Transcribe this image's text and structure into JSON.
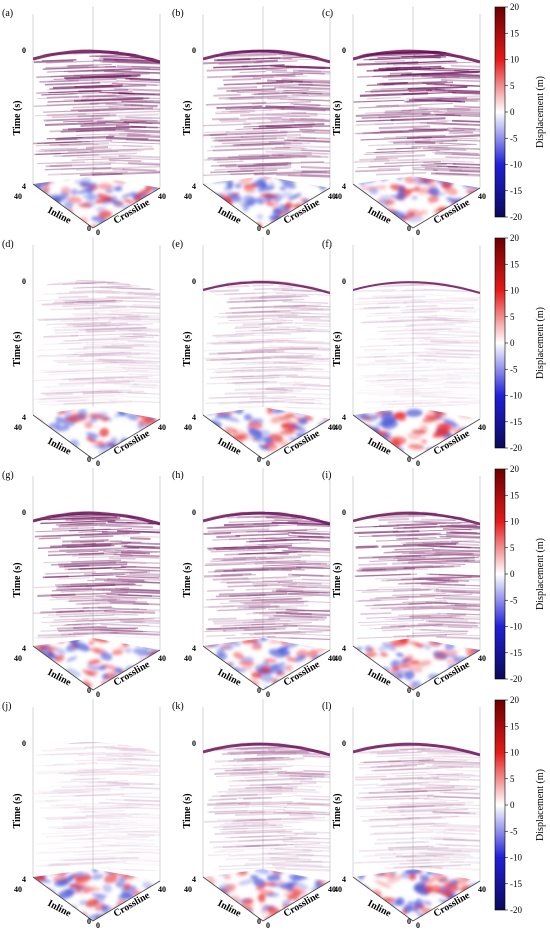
{
  "chart_data": {
    "type": "heatmap",
    "layout": {
      "rows": 4,
      "cols": 3
    },
    "panels": [
      {
        "label": "(a)",
        "row": 0,
        "col": 0,
        "amplitude": 1.0,
        "top_boundary": 1.0
      },
      {
        "label": "(b)",
        "row": 0,
        "col": 1,
        "amplitude": 0.95,
        "top_boundary": 0.9
      },
      {
        "label": "(c)",
        "row": 0,
        "col": 2,
        "amplitude": 1.0,
        "top_boundary": 1.0
      },
      {
        "label": "(d)",
        "row": 1,
        "col": 0,
        "amplitude": 0.45,
        "top_boundary": 0.1
      },
      {
        "label": "(e)",
        "row": 1,
        "col": 1,
        "amplitude": 0.5,
        "top_boundary": 0.5
      },
      {
        "label": "(f)",
        "row": 1,
        "col": 2,
        "amplitude": 0.3,
        "top_boundary": 0.3
      },
      {
        "label": "(g)",
        "row": 2,
        "col": 0,
        "amplitude": 0.95,
        "top_boundary": 1.0
      },
      {
        "label": "(h)",
        "row": 2,
        "col": 1,
        "amplitude": 0.9,
        "top_boundary": 0.9
      },
      {
        "label": "(i)",
        "row": 2,
        "col": 2,
        "amplitude": 0.85,
        "top_boundary": 0.8
      },
      {
        "label": "(j)",
        "row": 3,
        "col": 0,
        "amplitude": 0.3,
        "top_boundary": 0.1
      },
      {
        "label": "(k)",
        "row": 3,
        "col": 1,
        "amplitude": 0.55,
        "top_boundary": 0.9
      },
      {
        "label": "(l)",
        "row": 3,
        "col": 2,
        "amplitude": 0.5,
        "top_boundary": 0.9
      }
    ],
    "axes": {
      "time_label": "Time (s)",
      "time_range": [
        0,
        4
      ],
      "time_ticks": [
        "0",
        "4"
      ],
      "inline_label": "Inline",
      "inline_range": [
        0,
        40
      ],
      "inline_ticks": [
        "40",
        "0"
      ],
      "crossline_label": "Crossline",
      "crossline_range": [
        0,
        40
      ],
      "crossline_ticks": [
        "0",
        "40"
      ]
    },
    "colorbar": {
      "label": "Displacement (m)",
      "range": [
        -20,
        20
      ],
      "ticks": [
        "20",
        "15",
        "10",
        "5",
        "0",
        "-5",
        "-10",
        "-15",
        "-20"
      ],
      "colors": [
        "#0a0a5a",
        "#2020d8",
        "#ffffff",
        "#e41a1a",
        "#6b0000"
      ]
    },
    "section_colors": {
      "light": "#e8c8e0",
      "dark": "#6a1258"
    }
  }
}
